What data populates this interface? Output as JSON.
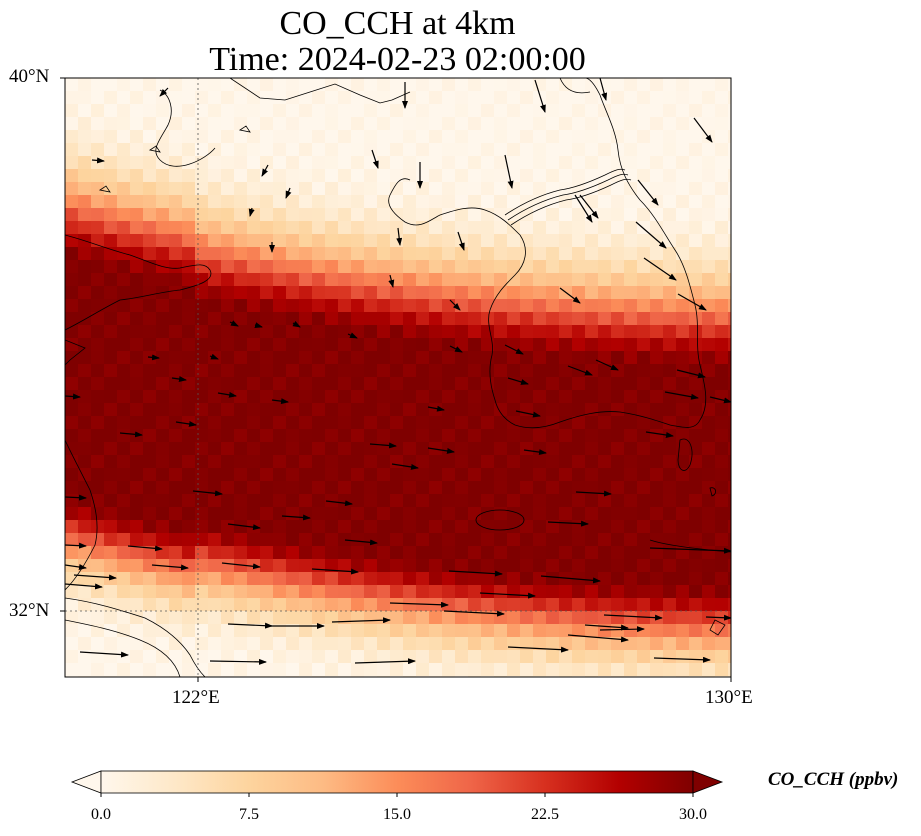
{
  "title_line1": "CO_CCH at 4km",
  "title_line2": "Time: 2024-02-23 02:00:00",
  "lat_ticks": [
    "40°N",
    "32°N"
  ],
  "lon_ticks": [
    "122°E",
    "130°E"
  ],
  "colorbar": {
    "label": "CO_CCH (ppbv)",
    "ticks": [
      "0.0",
      "7.5",
      "15.0",
      "22.5",
      "30.0"
    ],
    "min": 0,
    "max": 30,
    "extend": "both",
    "colormap": [
      "#fff7ec",
      "#fee8c8",
      "#fdd49e",
      "#fdbb84",
      "#fc8d59",
      "#ef6548",
      "#d7301f",
      "#b30000",
      "#7f0000"
    ]
  },
  "map": {
    "lon_range": [
      120,
      130
    ],
    "lat_range": [
      31,
      40
    ],
    "gridlines": {
      "lon": [
        122
      ],
      "lat": [
        32
      ]
    },
    "field_description": "High-concentration plume band oriented WNW-ESE across the Yellow Sea"
  }
}
